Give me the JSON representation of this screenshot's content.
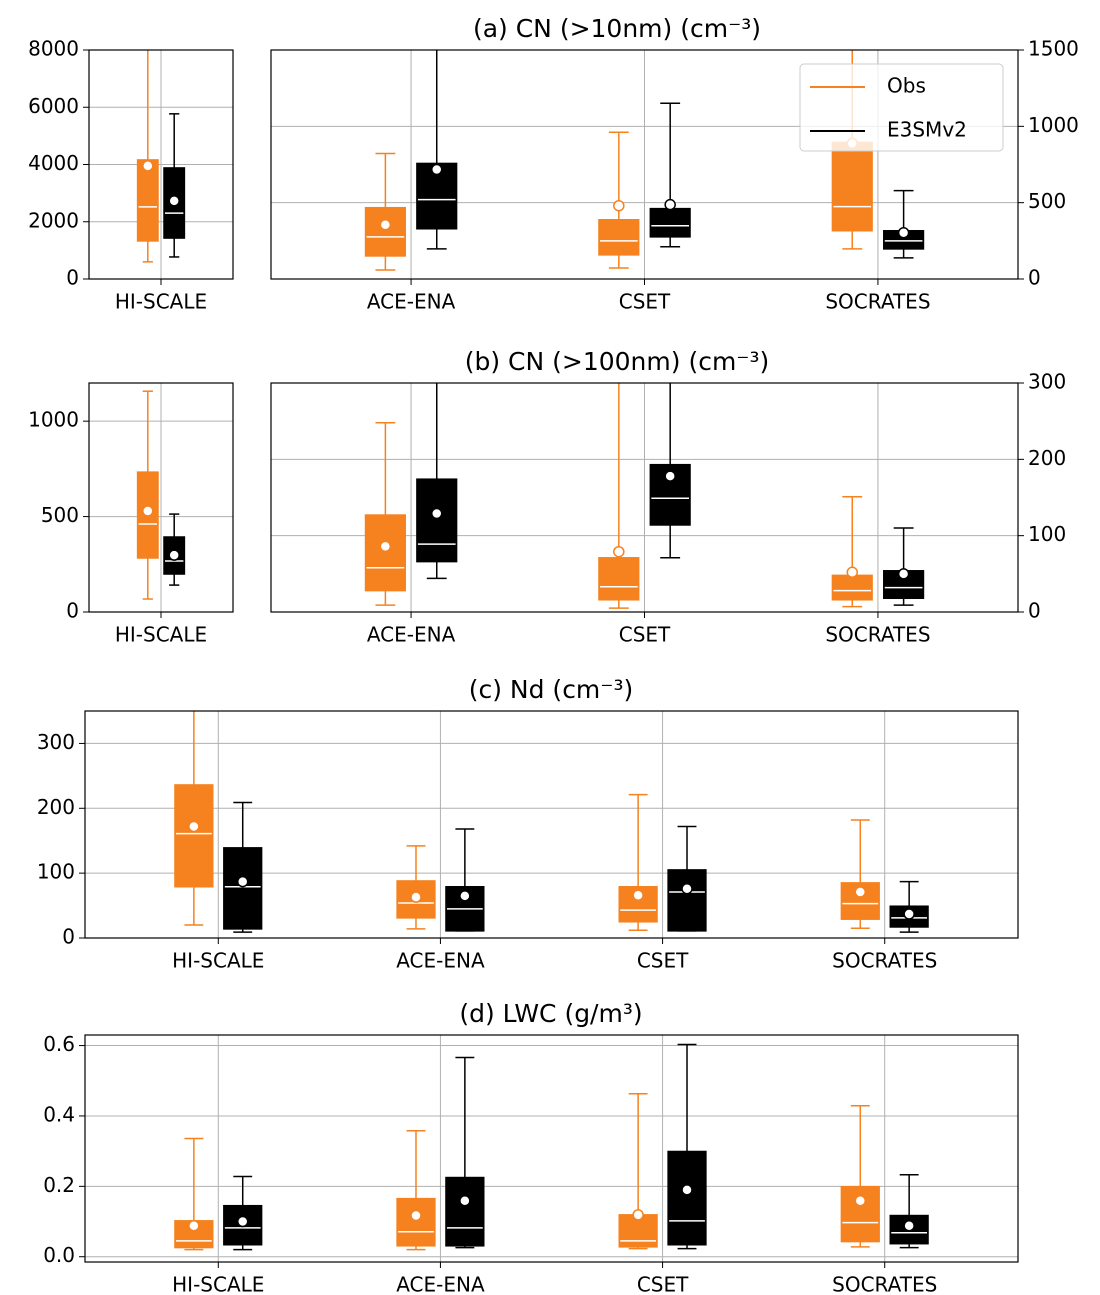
{
  "chart_data": {
    "type": "box",
    "legend": "upper right",
    "grid": true,
    "series": [
      {
        "name": "Obs",
        "color": "#f5821f"
      },
      {
        "name": "E3SMv2",
        "color": "#000000"
      }
    ],
    "panels": [
      {
        "title": "(a) CN (>10nm) (cm⁻³)",
        "subplots": [
          {
            "categories": [
              "HI-SCALE"
            ],
            "yaxis": "left",
            "ylim": [
              0,
              8000
            ],
            "yticks": [
              0,
              2000,
              4000,
              6000,
              8000
            ],
            "values": [
              [
                {
                  "whislo": 600,
                  "q1": 1330,
                  "med": 2520,
                  "q3": 4160,
                  "whishi": 9000,
                  "mean": 3950
                }
              ],
              [
                {
                  "whislo": 770,
                  "q1": 1430,
                  "med": 2300,
                  "q3": 3880,
                  "whishi": 5770,
                  "mean": 2730
                }
              ]
            ]
          },
          {
            "categories": [
              "ACE-ENA",
              "CSET",
              "SOCRATES"
            ],
            "yaxis": "right",
            "legend": true,
            "ylim": [
              0,
              1500
            ],
            "yticks": [
              0,
              500,
              1000,
              1500
            ],
            "values": [
              [
                {
                  "whislo": 59,
                  "q1": 151,
                  "med": 276,
                  "q3": 467,
                  "whishi": 822,
                  "mean": 355
                },
                {
                  "whislo": 72,
                  "q1": 158,
                  "med": 250,
                  "q3": 388,
                  "whishi": 961,
                  "mean": 480
                },
                {
                  "whislo": 197,
                  "q1": 316,
                  "med": 474,
                  "q3": 895,
                  "whishi": 1600,
                  "mean": 888
                }
              ],
              [
                {
                  "whislo": 197,
                  "q1": 329,
                  "med": 520,
                  "q3": 757,
                  "whishi": 1600,
                  "mean": 717
                },
                {
                  "whislo": 211,
                  "q1": 276,
                  "med": 349,
                  "q3": 461,
                  "whishi": 1151,
                  "mean": 487
                },
                {
                  "whislo": 138,
                  "q1": 197,
                  "med": 250,
                  "q3": 316,
                  "whishi": 579,
                  "mean": 303
                }
              ]
            ]
          }
        ]
      },
      {
        "title": "(b) CN (>100nm) (cm⁻³)",
        "subplots": [
          {
            "categories": [
              "HI-SCALE"
            ],
            "yaxis": "left",
            "ylim": [
              0,
              1200
            ],
            "yticks": [
              0,
              500,
              1000
            ],
            "values": [
              [
                {
                  "whislo": 68,
                  "q1": 283,
                  "med": 461,
                  "q3": 733,
                  "whishi": 1157,
                  "mean": 529
                }
              ],
              [
                {
                  "whislo": 141,
                  "q1": 199,
                  "med": 267,
                  "q3": 393,
                  "whishi": 513,
                  "mean": 298
                }
              ]
            ]
          },
          {
            "categories": [
              "ACE-ENA",
              "CSET",
              "SOCRATES"
            ],
            "yaxis": "right",
            "ylim": [
              0,
              300
            ],
            "yticks": [
              0,
              100,
              200,
              300
            ],
            "values": [
              [
                {
                  "whislo": 9,
                  "q1": 28,
                  "med": 58,
                  "q3": 127,
                  "whishi": 248,
                  "mean": 86
                },
                {
                  "whislo": 5,
                  "q1": 16,
                  "med": 33,
                  "q3": 71,
                  "whishi": 320,
                  "mean": 79
                },
                {
                  "whislo": 7,
                  "q1": 16,
                  "med": 28,
                  "q3": 48,
                  "whishi": 151,
                  "mean": 52
                }
              ],
              [
                {
                  "whislo": 44,
                  "q1": 66,
                  "med": 89,
                  "q3": 174,
                  "whishi": 320,
                  "mean": 129
                },
                {
                  "whislo": 71,
                  "q1": 114,
                  "med": 149,
                  "q3": 193,
                  "whishi": 320,
                  "mean": 178
                },
                {
                  "whislo": 9,
                  "q1": 18,
                  "med": 32,
                  "q3": 54,
                  "whishi": 110,
                  "mean": 50
                }
              ]
            ]
          }
        ]
      },
      {
        "title": "(c) Nd (cm⁻³)",
        "subplots": [
          {
            "categories": [
              "HI-SCALE",
              "ACE-ENA",
              "CSET",
              "SOCRATES"
            ],
            "yaxis": "left",
            "ylim": [
              0,
              350
            ],
            "yticks": [
              0,
              100,
              200,
              300
            ],
            "values": [
              [
                {
                  "whislo": 20,
                  "q1": 79,
                  "med": 161,
                  "q3": 236,
                  "whishi": 380,
                  "mean": 172
                },
                {
                  "whislo": 14,
                  "q1": 31,
                  "med": 54,
                  "q3": 88,
                  "whishi": 142,
                  "mean": 63
                },
                {
                  "whislo": 12,
                  "q1": 25,
                  "med": 43,
                  "q3": 79,
                  "whishi": 221,
                  "mean": 66
                },
                {
                  "whislo": 15,
                  "q1": 29,
                  "med": 53,
                  "q3": 85,
                  "whishi": 182,
                  "mean": 71
                }
              ],
              [
                {
                  "whislo": 9,
                  "q1": 14,
                  "med": 79,
                  "q3": 139,
                  "whishi": 209,
                  "mean": 87
                },
                {
                  "whislo": 11,
                  "q1": 11,
                  "med": 45,
                  "q3": 79,
                  "whishi": 168,
                  "mean": 65
                },
                {
                  "whislo": 11,
                  "q1": 11,
                  "med": 71,
                  "q3": 105,
                  "whishi": 172,
                  "mean": 76
                },
                {
                  "whislo": 9,
                  "q1": 17,
                  "med": 31,
                  "q3": 49,
                  "whishi": 87,
                  "mean": 37
                }
              ]
            ]
          }
        ]
      },
      {
        "title": "(d) LWC (g/m³)",
        "subplots": [
          {
            "categories": [
              "HI-SCALE",
              "ACE-ENA",
              "CSET",
              "SOCRATES"
            ],
            "yaxis": "left",
            "ylim": [
              -0.015,
              0.63
            ],
            "yticks": [
              {
                "value": 0,
                "label": "0.0"
              },
              0.2,
              0.4,
              0.6
            ],
            "values": [
              [
                {
                  "whislo": 0.02,
                  "q1": 0.026,
                  "med": 0.045,
                  "q3": 0.102,
                  "whishi": 0.336,
                  "mean": 0.088
                },
                {
                  "whislo": 0.02,
                  "q1": 0.031,
                  "med": 0.071,
                  "q3": 0.165,
                  "whishi": 0.358,
                  "mean": 0.117
                },
                {
                  "whislo": 0.023,
                  "q1": 0.028,
                  "med": 0.045,
                  "q3": 0.119,
                  "whishi": 0.463,
                  "mean": 0.119
                },
                {
                  "whislo": 0.028,
                  "q1": 0.043,
                  "med": 0.097,
                  "q3": 0.199,
                  "whishi": 0.429,
                  "mean": 0.159
                }
              ],
              [
                {
                  "whislo": 0.02,
                  "q1": 0.034,
                  "med": 0.082,
                  "q3": 0.145,
                  "whishi": 0.228,
                  "mean": 0.1
                },
                {
                  "whislo": 0.026,
                  "q1": 0.031,
                  "med": 0.082,
                  "q3": 0.225,
                  "whishi": 0.566,
                  "mean": 0.159
                },
                {
                  "whislo": 0.023,
                  "q1": 0.034,
                  "med": 0.102,
                  "q3": 0.299,
                  "whishi": 0.603,
                  "mean": 0.19
                },
                {
                  "whislo": 0.026,
                  "q1": 0.037,
                  "med": 0.068,
                  "q3": 0.117,
                  "whishi": 0.233,
                  "mean": 0.088
                }
              ]
            ]
          }
        ]
      }
    ]
  }
}
